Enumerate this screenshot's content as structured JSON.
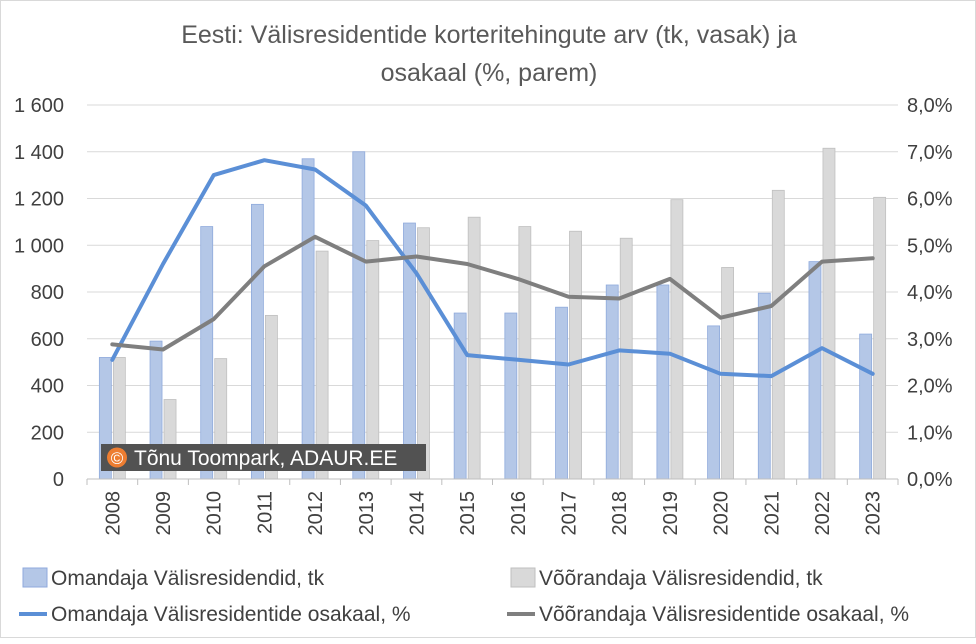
{
  "chart_data": {
    "type": "bar",
    "title_line1": "Eesti: Välisresidentide korteritehingute arv (tk, vasak) ja",
    "title_line2": "osakaal (%, parem)",
    "categories": [
      "2008",
      "2009",
      "2010",
      "2011",
      "2012",
      "2013",
      "2014",
      "2015",
      "2016",
      "2017",
      "2018",
      "2019",
      "2020",
      "2021",
      "2022",
      "2023"
    ],
    "y_left": {
      "min": 0,
      "max": 1600,
      "step": 200,
      "tick_labels": [
        "0",
        "200",
        "400",
        "600",
        "800",
        "1 000",
        "1 200",
        "1 400",
        "1 600"
      ]
    },
    "y_right": {
      "min": 0,
      "max": 8,
      "step": 1,
      "tick_labels": [
        "0,0%",
        "1,0%",
        "2,0%",
        "3,0%",
        "4,0%",
        "5,0%",
        "6,0%",
        "7,0%",
        "8,0%"
      ]
    },
    "grid": "horizontal",
    "legend_position": "bottom",
    "series": [
      {
        "name": "Omandaja Välisresidendid, tk",
        "type": "bar",
        "axis": "left",
        "color": "#b4c7e7",
        "stroke": "#8faadc",
        "values": [
          520,
          590,
          1080,
          1175,
          1370,
          1400,
          1095,
          710,
          710,
          735,
          830,
          830,
          655,
          795,
          930,
          620
        ]
      },
      {
        "name": "Võõrandaja Välisresidendid, tk",
        "type": "bar",
        "axis": "left",
        "color": "#d9d9d9",
        "stroke": "#bfbfbf",
        "values": [
          520,
          340,
          515,
          700,
          975,
          1020,
          1075,
          1120,
          1080,
          1060,
          1030,
          1195,
          905,
          1235,
          1415,
          1205
        ]
      },
      {
        "name": "Omandaja Välisresidentide osakaal, %",
        "type": "line",
        "axis": "right",
        "color": "#5b8fd6",
        "values": [
          2.55,
          4.6,
          6.5,
          6.82,
          6.62,
          5.85,
          4.4,
          2.65,
          2.55,
          2.45,
          2.75,
          2.68,
          2.25,
          2.2,
          2.8,
          2.25
        ]
      },
      {
        "name": "Võõrandaja Välisresidentide osakaal, %",
        "type": "line",
        "axis": "right",
        "color": "#7f7f7f",
        "values": [
          2.88,
          2.77,
          3.42,
          4.55,
          5.18,
          4.65,
          4.76,
          4.6,
          4.28,
          3.9,
          3.86,
          4.28,
          3.45,
          3.7,
          4.65,
          4.72
        ]
      }
    ]
  },
  "watermark": {
    "symbol": "©",
    "text": "Tõnu Toompark, ADAUR.EE"
  }
}
